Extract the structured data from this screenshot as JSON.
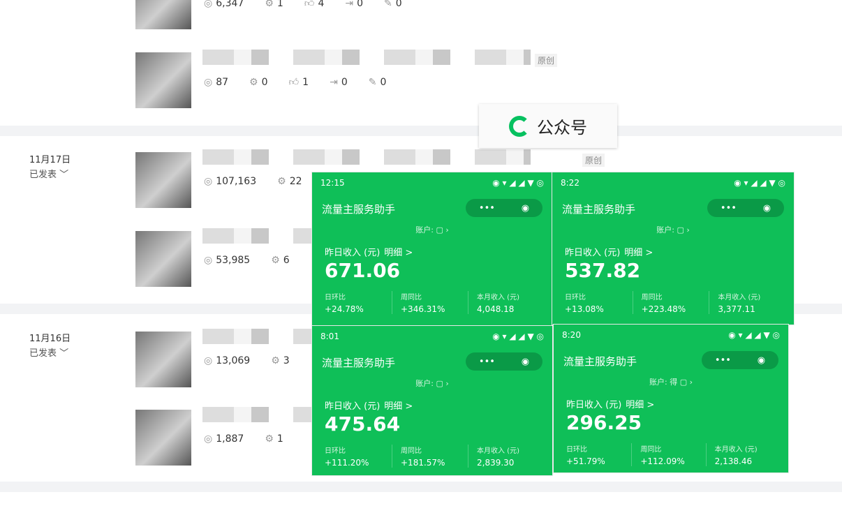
{
  "articles": [
    {
      "views": "6,347",
      "shares": "1",
      "likes": "4",
      "forwards": "0",
      "comments": "0"
    },
    {
      "tag": "原创",
      "views": "87",
      "shares": "0",
      "likes": "1",
      "forwards": "0",
      "comments": "0"
    },
    {
      "tag": "原创",
      "views": "107,163",
      "shares": "22"
    },
    {
      "views": "53,985",
      "shares": "6"
    },
    {
      "views": "13,069",
      "shares": "3"
    },
    {
      "views": "1,887",
      "shares": "1"
    }
  ],
  "groups": [
    {
      "date": "11月17日",
      "status": "已发表"
    },
    {
      "date": "11月16日",
      "status": "已发表"
    }
  ],
  "overlay": {
    "label": "公众号"
  },
  "phones": [
    {
      "time": "12:15",
      "app": "流量主服务助手",
      "account": "账户:",
      "yesterday": "昨日收入 (元)",
      "detail": "明细 >",
      "amount": "671.06",
      "l1": "日环比",
      "v1": "+24.78%",
      "l2": "周同比",
      "v2": "+346.31%",
      "l3": "本月收入 (元)",
      "v3": "4,048.18"
    },
    {
      "time": "8:22",
      "app": "流量主服务助手",
      "account": "账户:",
      "yesterday": "昨日收入 (元)",
      "detail": "明细 >",
      "amount": "537.82",
      "l1": "日环比",
      "v1": "+13.08%",
      "l2": "周同比",
      "v2": "+223.48%",
      "l3": "本月收入 (元)",
      "v3": "3,377.11"
    },
    {
      "time": "8:01",
      "app": "流量主服务助手",
      "account": "账户:",
      "yesterday": "昨日收入 (元)",
      "detail": "明细 >",
      "amount": "475.64",
      "l1": "日环比",
      "v1": "+111.20%",
      "l2": "周同比",
      "v2": "+181.57%",
      "l3": "本月收入 (元)",
      "v3": "2,839.30"
    },
    {
      "time": "8:20",
      "app": "流量主服务助手",
      "account": "账户: 得",
      "yesterday": "昨日收入 (元)",
      "detail": "明细 >",
      "amount": "296.25",
      "l1": "日环比",
      "v1": "+51.79%",
      "l2": "周同比",
      "v2": "+112.09%",
      "l3": "本月收入 (元)",
      "v3": "2,138.46"
    }
  ],
  "colors": {
    "green": "#0fbf58",
    "brand": "#07c160"
  }
}
